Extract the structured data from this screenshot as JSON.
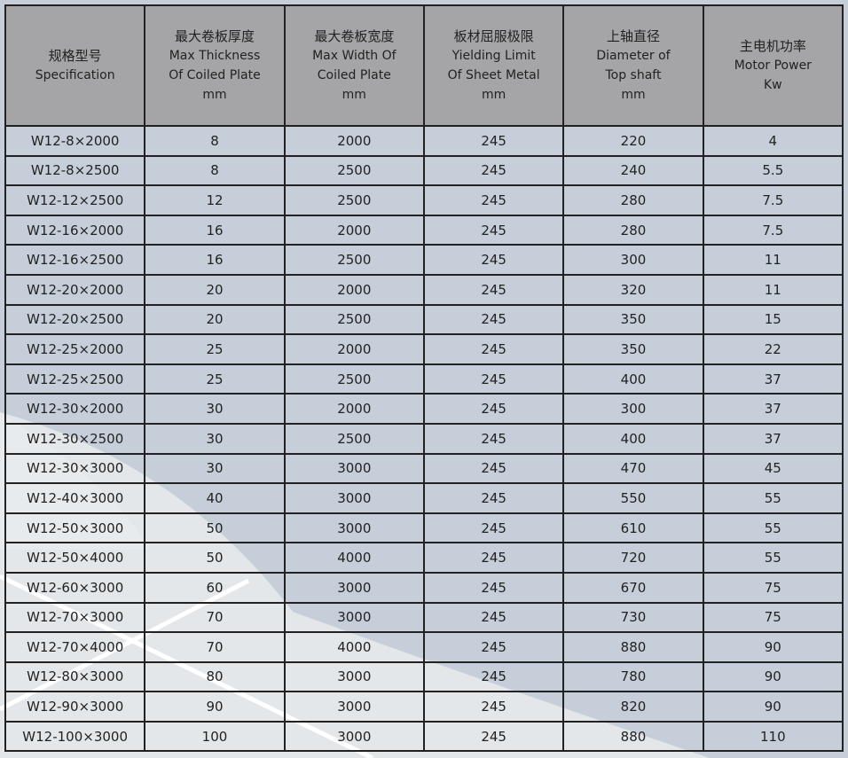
{
  "colors": {
    "header_bg": "#a5a4a6",
    "body_bg": "#c6cfd9",
    "light_region": "#e3e7ea",
    "border": "#222222"
  },
  "headers": [
    {
      "cn": "规格型号",
      "en": [
        "Specification"
      ]
    },
    {
      "cn": "最大卷板厚度",
      "en": [
        "Max Thickness",
        "Of Coiled Plate",
        "mm"
      ]
    },
    {
      "cn": "最大卷板宽度",
      "en": [
        "Max Width  Of",
        "Coiled Plate",
        "mm"
      ]
    },
    {
      "cn": "板材屈服极限",
      "en": [
        "Yielding Limit",
        "Of  Sheet Metal",
        "mm"
      ]
    },
    {
      "cn": "上轴直径",
      "en": [
        "Diameter of",
        "Top shaft",
        "mm"
      ]
    },
    {
      "cn": "主电机功率",
      "en": [
        "Motor Power",
        "Kw"
      ]
    }
  ],
  "rows": [
    [
      "W12-8×2000",
      "8",
      "2000",
      "245",
      "220",
      "4"
    ],
    [
      "W12-8×2500",
      "8",
      "2500",
      "245",
      "240",
      "5.5"
    ],
    [
      "W12-12×2500",
      "12",
      "2500",
      "245",
      "280",
      "7.5"
    ],
    [
      "W12-16×2000",
      "16",
      "2000",
      "245",
      "280",
      "7.5"
    ],
    [
      "W12-16×2500",
      "16",
      "2500",
      "245",
      "300",
      "11"
    ],
    [
      "W12-20×2000",
      "20",
      "2000",
      "245",
      "320",
      "11"
    ],
    [
      "W12-20×2500",
      "20",
      "2500",
      "245",
      "350",
      "15"
    ],
    [
      "W12-25×2000",
      "25",
      "2000",
      "245",
      "350",
      "22"
    ],
    [
      "W12-25×2500",
      "25",
      "2500",
      "245",
      "400",
      "37"
    ],
    [
      "W12-30×2000",
      "30",
      "2000",
      "245",
      "300",
      "37"
    ],
    [
      "W12-30×2500",
      "30",
      "2500",
      "245",
      "400",
      "37"
    ],
    [
      "W12-30×3000",
      "30",
      "3000",
      "245",
      "470",
      "45"
    ],
    [
      "W12-40×3000",
      "40",
      "3000",
      "245",
      "550",
      "55"
    ],
    [
      "W12-50×3000",
      "50",
      "3000",
      "245",
      "610",
      "55"
    ],
    [
      "W12-50×4000",
      "50",
      "4000",
      "245",
      "720",
      "55"
    ],
    [
      "W12-60×3000",
      "60",
      "3000",
      "245",
      "670",
      "75"
    ],
    [
      "W12-70×3000",
      "70",
      "3000",
      "245",
      "730",
      "75"
    ],
    [
      "W12-70×4000",
      "70",
      "4000",
      "245",
      "880",
      "90"
    ],
    [
      "W12-80×3000",
      "80",
      "3000",
      "245",
      "780",
      "90"
    ],
    [
      "W12-90×3000",
      "90",
      "3000",
      "245",
      "820",
      "90"
    ],
    [
      "W12-100×3000",
      "100",
      "3000",
      "245",
      "880",
      "110"
    ]
  ]
}
